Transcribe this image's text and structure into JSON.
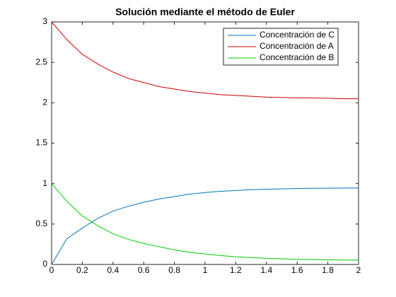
{
  "chart_data": {
    "type": "line",
    "title": "Solución mediante el método de Euler",
    "x": [
      0,
      0.1,
      0.2,
      0.3,
      0.4,
      0.5,
      0.6,
      0.7,
      0.8,
      0.9,
      1,
      1.1,
      1.2,
      1.3,
      1.4,
      1.5,
      1.6,
      1.7,
      1.8,
      1.9,
      2
    ],
    "series": [
      {
        "name": "Concentración de C",
        "color": "#0072bd",
        "values": [
          0,
          0.32,
          0.45,
          0.57,
          0.66,
          0.72,
          0.77,
          0.81,
          0.84,
          0.87,
          0.89,
          0.905,
          0.915,
          0.925,
          0.93,
          0.935,
          0.94,
          0.942,
          0.944,
          0.945,
          0.946
        ]
      },
      {
        "name": "Concentración de A",
        "color": "#cc0000",
        "values": [
          3,
          2.78,
          2.6,
          2.48,
          2.38,
          2.3,
          2.25,
          2.2,
          2.17,
          2.14,
          2.12,
          2.1,
          2.09,
          2.08,
          2.07,
          2.065,
          2.06,
          2.06,
          2.055,
          2.05,
          2.05
        ]
      },
      {
        "name": "Concentración de B",
        "color": "#00cc00",
        "values": [
          1,
          0.78,
          0.6,
          0.48,
          0.38,
          0.31,
          0.26,
          0.22,
          0.18,
          0.15,
          0.13,
          0.11,
          0.095,
          0.085,
          0.075,
          0.07,
          0.065,
          0.06,
          0.058,
          0.055,
          0.055
        ]
      }
    ],
    "xlim": [
      0,
      2
    ],
    "xticks": [
      0,
      0.2,
      0.4,
      0.6,
      0.8,
      1,
      1.2,
      1.4,
      1.6,
      1.8,
      2
    ],
    "ylim": [
      0,
      3
    ],
    "yticks": [
      0,
      0.5,
      1,
      1.5,
      2,
      2.5,
      3
    ],
    "grid": false,
    "legend": "upper-right"
  }
}
